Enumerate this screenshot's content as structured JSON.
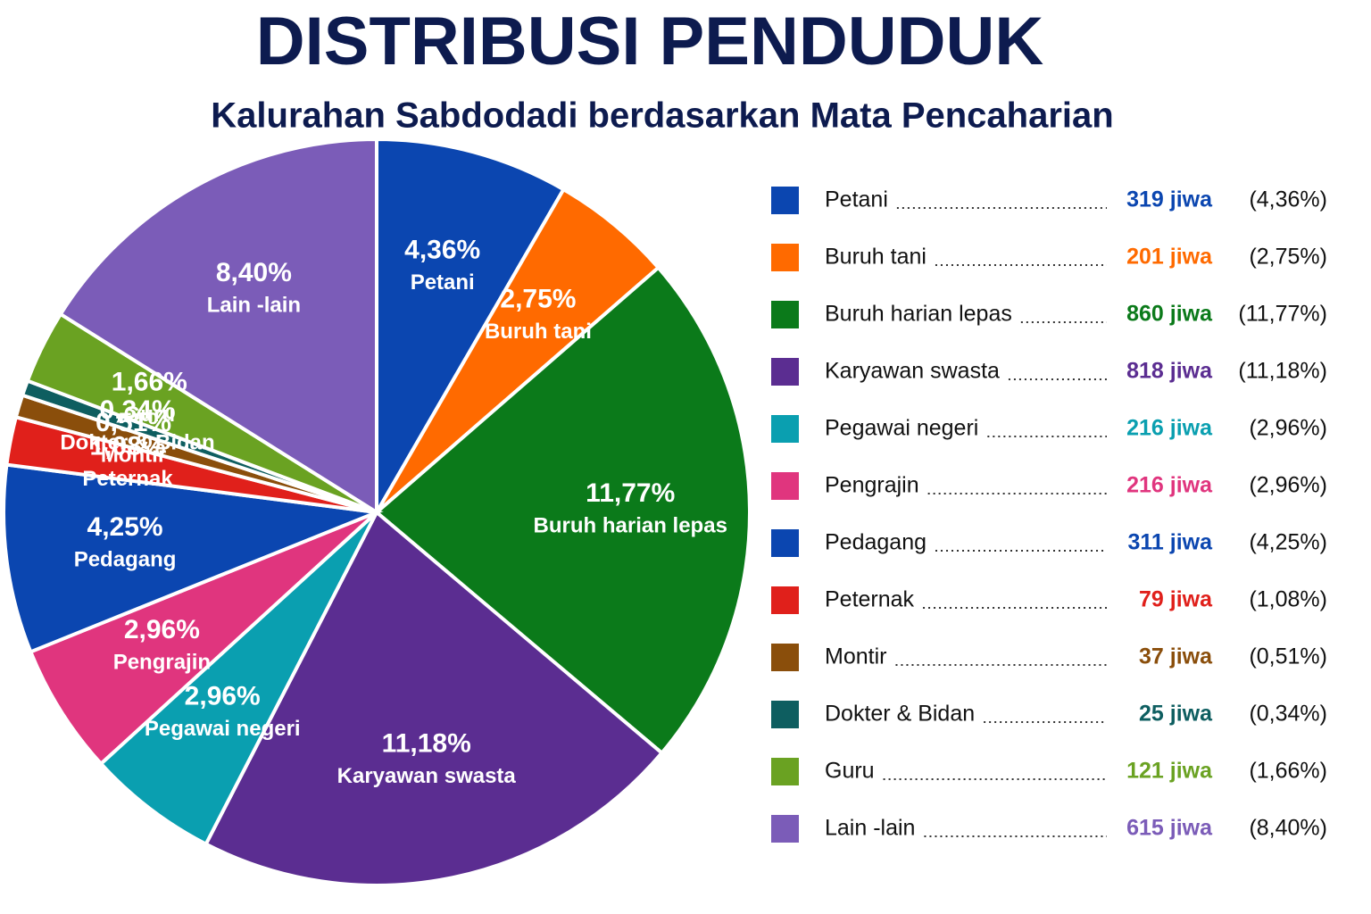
{
  "chart_data": {
    "type": "pie",
    "title": "DISTRIBUSI PENDUDUK",
    "subtitle": "Kalurahan Sabdodadi berdasarkan Mata Pencaharian",
    "categories": [
      "Petani",
      "Buruh tani",
      "Buruh harian lepas",
      "Karyawan swasta",
      "Pegawai negeri",
      "Pengrajin",
      "Pedagang",
      "Peternak",
      "Montir",
      "Dokter & Bidan",
      "Guru",
      "Lain -lain"
    ],
    "values": [
      4.36,
      2.75,
      11.77,
      11.18,
      2.96,
      2.96,
      4.25,
      1.08,
      0.51,
      0.34,
      1.66,
      8.4
    ],
    "value_labels": [
      "4,36%",
      "2,75%",
      "11,77%",
      "11,18%",
      "2,96%",
      "2,96%",
      "4,25%",
      "1,08%",
      "0,51%",
      "0,34%",
      "1,66%",
      "8,40%"
    ],
    "colors": [
      "#0b46b0",
      "#ff6a00",
      "#0b7a1a",
      "#5b2d91",
      "#0a9fb0",
      "#e0357e",
      "#0b46b0",
      "#e0201b",
      "#8a4e0b",
      "#0e5e60",
      "#6aa222",
      "#7b5cb8"
    ],
    "legend_counts": [
      "319 jiwa",
      "201 jiwa",
      "860 jiwa",
      "818 jiwa",
      "216 jiwa",
      "216 jiwa",
      "311 jiwa",
      "79 jiwa",
      "37 jiwa",
      "25 jiwa",
      "121 jiwa",
      "615 jiwa"
    ],
    "legend_percents": [
      "(4,36%)",
      "(2,75%)",
      "(11,77%)",
      "(11,18%)",
      "(2,96%)",
      "(2,96%)",
      "(4,25%)",
      "(1,08%)",
      "(0,51%)",
      "(0,34%)",
      "(1,66%)",
      "(8,40%)"
    ]
  }
}
